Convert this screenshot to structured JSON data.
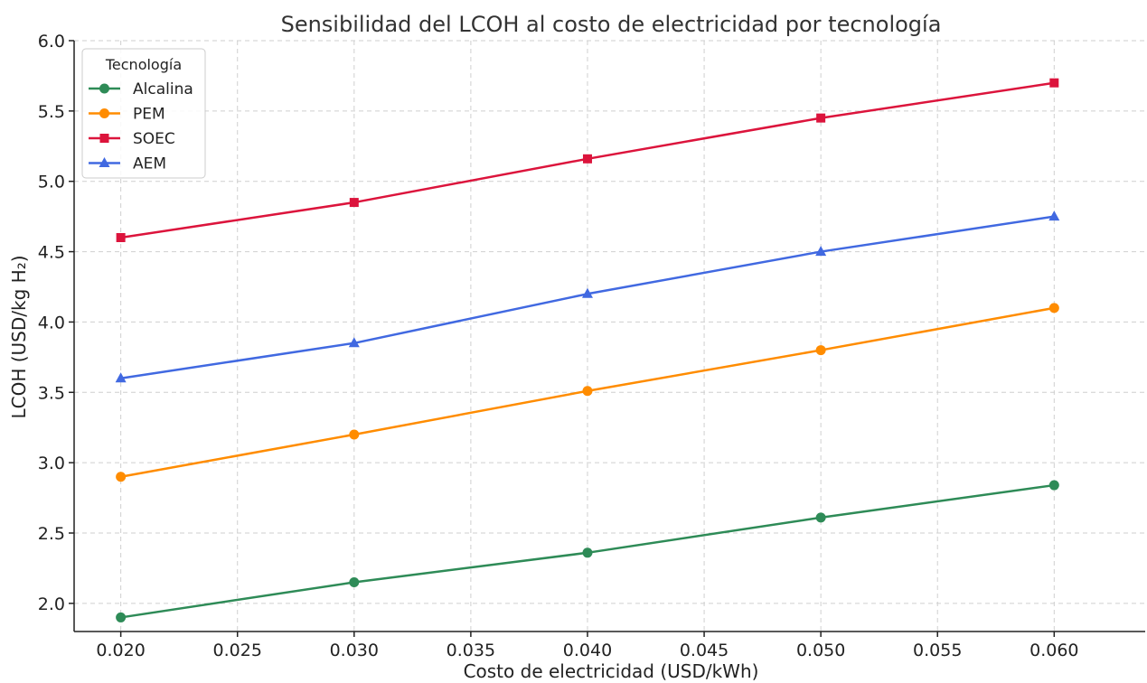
{
  "chart_data": {
    "type": "line",
    "title": "Sensibilidad del LCOH al costo de electricidad por tecnología",
    "xlabel": "Costo de electricidad (USD/kWh)",
    "ylabel": "LCOH (USD/kg H₂)",
    "xlim": [
      0.018,
      0.0639
    ],
    "ylim": [
      1.8,
      6.0
    ],
    "x_ticks": [
      "0.020",
      "0.025",
      "0.030",
      "0.035",
      "0.040",
      "0.045",
      "0.050",
      "0.055",
      "0.060"
    ],
    "y_ticks": [
      "2.0",
      "2.5",
      "3.0",
      "3.5",
      "4.0",
      "4.5",
      "5.0",
      "5.5",
      "6.0"
    ],
    "grid": true,
    "legend": {
      "title": "Tecnología",
      "placement": "top-left"
    },
    "x": [
      0.02,
      0.03,
      0.04,
      0.05,
      0.06
    ],
    "series": [
      {
        "name": "Alcalina",
        "values": [
          1.9,
          2.15,
          2.36,
          2.61,
          2.84
        ],
        "color": "#2e8b57",
        "marker": "circle"
      },
      {
        "name": "PEM",
        "values": [
          2.9,
          3.2,
          3.51,
          3.8,
          4.1
        ],
        "color": "#ff8c00",
        "marker": "circle"
      },
      {
        "name": "SOEC",
        "values": [
          4.6,
          4.85,
          5.16,
          5.45,
          5.7
        ],
        "color": "#dc143c",
        "marker": "square"
      },
      {
        "name": "AEM",
        "values": [
          3.6,
          3.85,
          4.2,
          4.5,
          4.75
        ],
        "color": "#4169e1",
        "marker": "triangle"
      }
    ]
  }
}
